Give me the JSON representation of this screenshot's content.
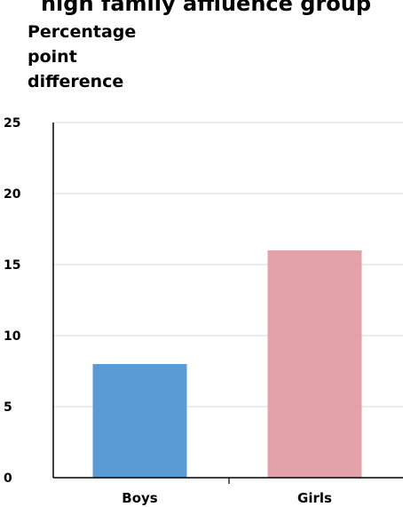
{
  "chart_data": {
    "type": "bar",
    "title": "high family affluence group",
    "ylabel_lines": [
      "Percentage",
      "point",
      "difference"
    ],
    "categories": [
      "Boys",
      "Girls"
    ],
    "values": [
      8,
      16
    ],
    "colors": [
      "#5b9bd5",
      "#e3a2aa"
    ],
    "ylim": [
      0,
      25
    ],
    "yticks": [
      "0",
      "5",
      "10",
      "15",
      "20",
      "25"
    ],
    "grid": true,
    "legend": "none"
  }
}
